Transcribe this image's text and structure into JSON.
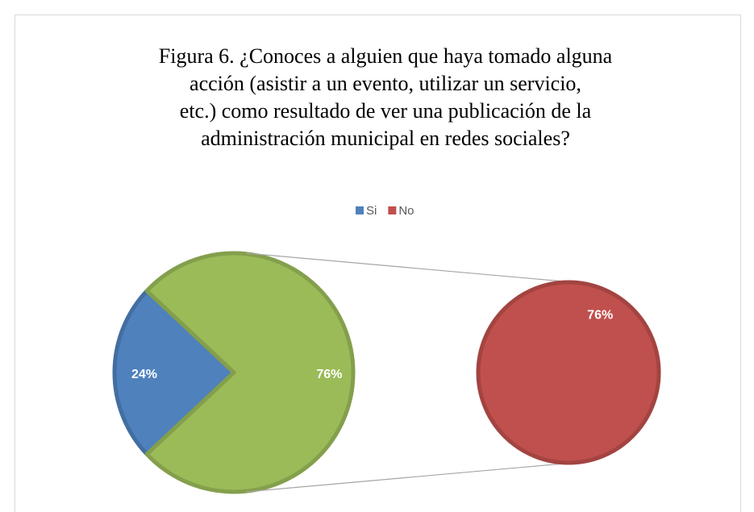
{
  "chart_data": {
    "type": "pie",
    "title": "Figura 6. ¿Conoces a alguien que haya tomado alguna acción (asistir a un evento, utilizar un servicio, etc.) como resultado de ver una publicación de la administración municipal en redes sociales?",
    "categories": [
      "Si",
      "No"
    ],
    "values": [
      24,
      76
    ],
    "value_labels": [
      "24%",
      "76%"
    ],
    "colors": [
      "#4f81bd",
      "#c0504d"
    ],
    "secondary": [
      1
    ],
    "other_color": "#9bbb59",
    "legend": "top"
  }
}
